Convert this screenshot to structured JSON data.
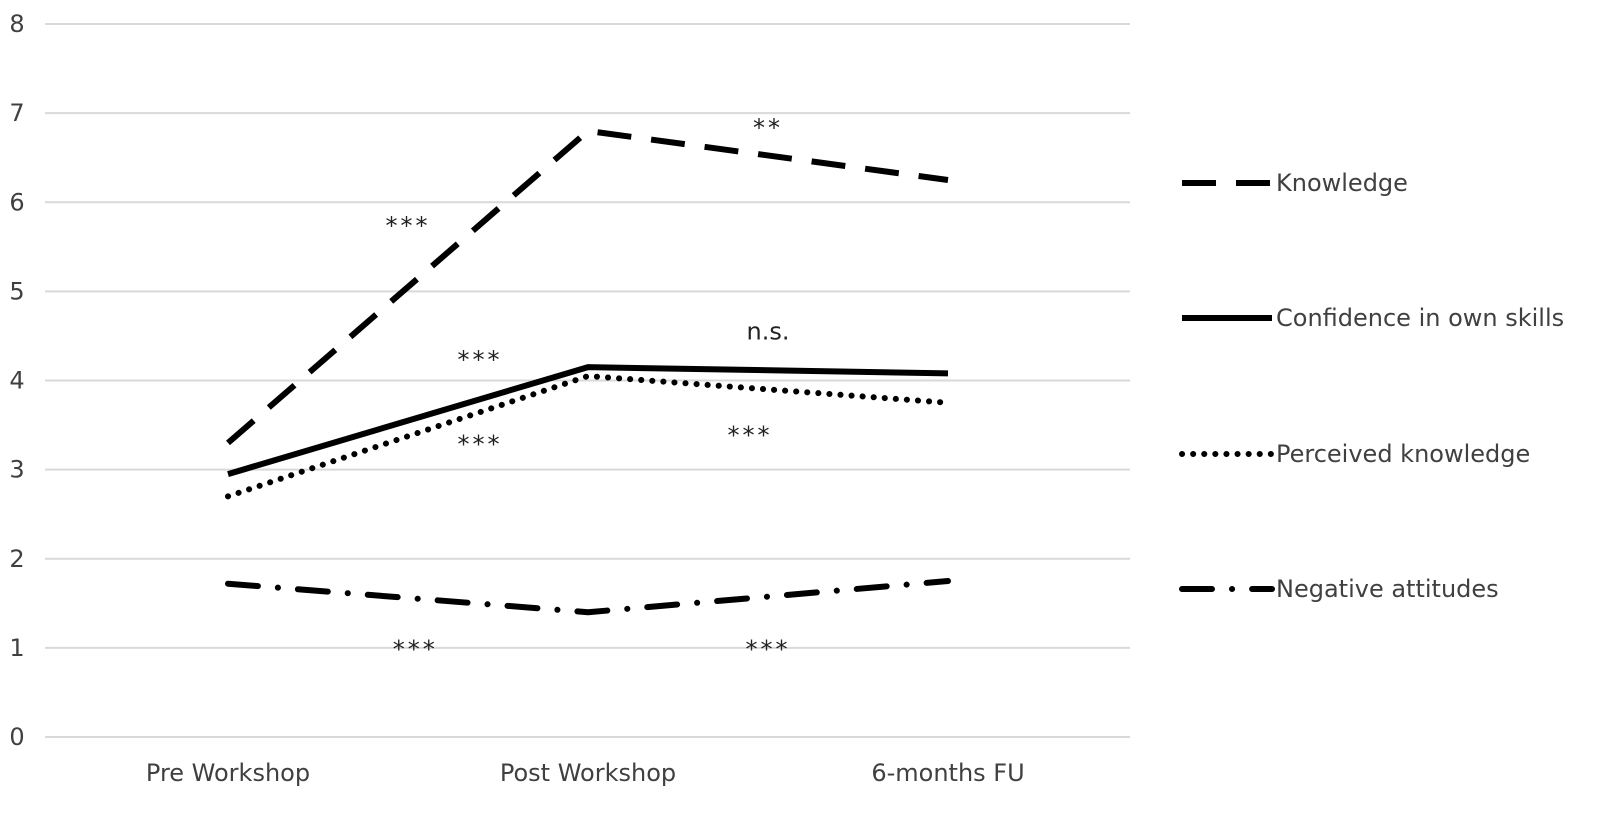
{
  "chart_data": {
    "type": "line",
    "categories": [
      "Pre Workshop",
      "Post Workshop",
      "6-months FU"
    ],
    "ylim": [
      0,
      8
    ],
    "yticks": [
      "0",
      "1",
      "2",
      "3",
      "4",
      "5",
      "6",
      "7",
      "8"
    ],
    "grid": true,
    "legend_position": "right",
    "series": [
      {
        "name": "Knowledge",
        "style": "dashed",
        "values": [
          3.3,
          6.8,
          6.25
        ]
      },
      {
        "name": "Confidence in own skills",
        "style": "solid",
        "values": [
          2.95,
          4.15,
          4.08
        ]
      },
      {
        "name": "Perceived knowledge",
        "style": "dotted",
        "values": [
          2.7,
          4.05,
          3.75
        ]
      },
      {
        "name": "Negative attitudes",
        "style": "dash-dot",
        "values": [
          1.72,
          1.4,
          1.75
        ]
      }
    ],
    "annotations": [
      {
        "text": "***",
        "x": 0.5,
        "y": 5.8
      },
      {
        "text": "**",
        "x": 1.5,
        "y": 6.9
      },
      {
        "text": "***",
        "x": 0.7,
        "y": 4.3
      },
      {
        "text": "n.s.",
        "x": 1.5,
        "y": 4.55
      },
      {
        "text": "***",
        "x": 0.7,
        "y": 3.35
      },
      {
        "text": "***",
        "x": 1.45,
        "y": 3.45
      },
      {
        "text": "***",
        "x": 0.52,
        "y": 1.05
      },
      {
        "text": "***",
        "x": 1.5,
        "y": 1.05
      }
    ],
    "colors": {
      "line": "#000000",
      "grid": "#d9d9d9",
      "text": "#404040"
    }
  }
}
